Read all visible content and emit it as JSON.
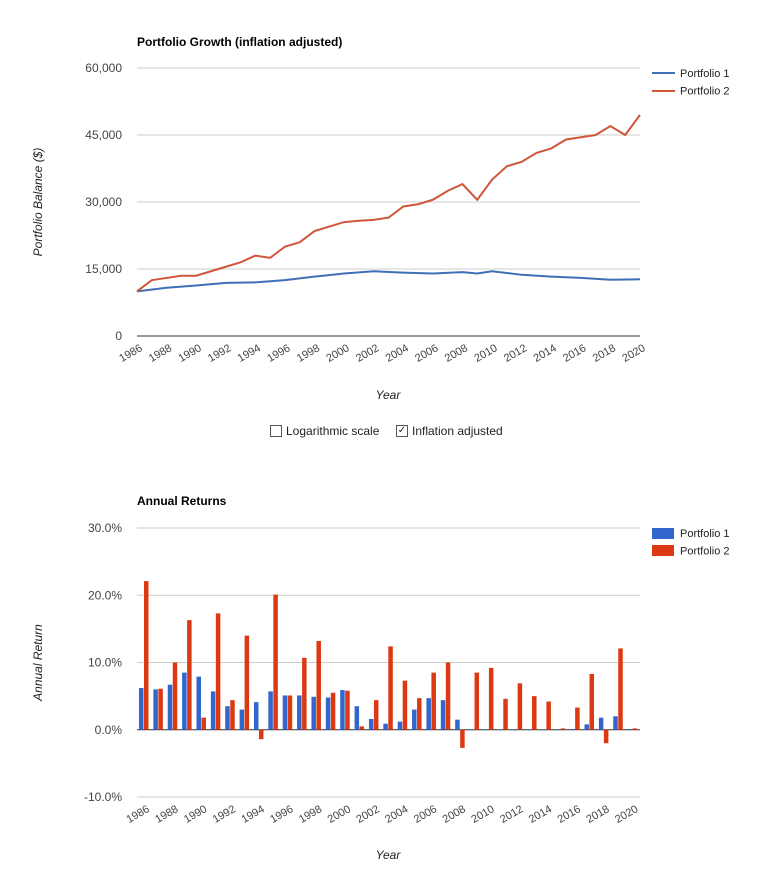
{
  "chart_data": [
    {
      "type": "line",
      "title": "Portfolio Growth (inflation adjusted)",
      "xlabel": "Year",
      "ylabel": "Portfolio Balance ($)",
      "ylim": [
        0,
        60000
      ],
      "yticks": [
        "0",
        "15,000",
        "30,000",
        "45,000",
        "60,000"
      ],
      "ytick_values": [
        0,
        15000,
        30000,
        45000,
        60000
      ],
      "xlim": [
        1986,
        2020
      ],
      "xticks": [
        1986,
        1988,
        1990,
        1992,
        1994,
        1996,
        1998,
        2000,
        2002,
        2004,
        2006,
        2008,
        2010,
        2012,
        2014,
        2016,
        2018,
        2020
      ],
      "grid": true,
      "legend": "right",
      "series": [
        {
          "name": "Portfolio 1",
          "color": "#3f6fb5",
          "x": [
            1986,
            1988,
            1990,
            1992,
            1994,
            1996,
            1998,
            2000,
            2002,
            2004,
            2006,
            2008,
            2009,
            2010,
            2012,
            2014,
            2016,
            2018,
            2020
          ],
          "values": [
            10000,
            10800,
            11300,
            11900,
            12000,
            12500,
            13300,
            14000,
            14500,
            14200,
            14000,
            14300,
            14000,
            14500,
            13700,
            13300,
            13000,
            12600,
            12700
          ]
        },
        {
          "name": "Portfolio 2",
          "color": "#d0563b",
          "x": [
            1986,
            1987,
            1988,
            1989,
            1990,
            1991,
            1992,
            1993,
            1994,
            1995,
            1996,
            1997,
            1998,
            1999,
            2000,
            2001,
            2002,
            2003,
            2004,
            2005,
            2006,
            2007,
            2008,
            2009,
            2010,
            2011,
            2012,
            2013,
            2014,
            2015,
            2016,
            2017,
            2018,
            2019,
            2020
          ],
          "values": [
            10000,
            12500,
            13000,
            13500,
            13500,
            14500,
            15500,
            16500,
            18000,
            17500,
            20000,
            21000,
            23500,
            24500,
            25500,
            25800,
            26000,
            26500,
            29000,
            29500,
            30500,
            32500,
            34000,
            30500,
            35000,
            38000,
            39000,
            41000,
            42000,
            44000,
            44500,
            45000,
            47000,
            45000,
            49500
          ]
        }
      ]
    },
    {
      "type": "bar",
      "title": "Annual Returns",
      "xlabel": "Year",
      "ylabel": "Annual Return",
      "ylim": [
        -10,
        30
      ],
      "yticks": [
        "-10.0%",
        "0.0%",
        "10.0%",
        "20.0%",
        "30.0%"
      ],
      "ytick_values": [
        -10,
        0,
        10,
        20,
        30
      ],
      "categories": [
        1986,
        1987,
        1988,
        1989,
        1990,
        1991,
        1992,
        1993,
        1994,
        1995,
        1996,
        1997,
        1998,
        1999,
        2000,
        2001,
        2002,
        2003,
        2004,
        2005,
        2006,
        2007,
        2008,
        2009,
        2010,
        2011,
        2012,
        2013,
        2014,
        2015,
        2016,
        2017,
        2018,
        2019,
        2020
      ],
      "xticks": [
        1986,
        1988,
        1990,
        1992,
        1994,
        1996,
        1998,
        2000,
        2002,
        2004,
        2006,
        2008,
        2010,
        2012,
        2014,
        2016,
        2018,
        2020
      ],
      "grid": true,
      "legend": "right",
      "series": [
        {
          "name": "Portfolio 1",
          "color": "#3366cc",
          "values": [
            6.2,
            6.0,
            6.7,
            8.5,
            7.9,
            5.7,
            3.5,
            3.0,
            4.1,
            5.7,
            5.1,
            5.1,
            4.9,
            4.8,
            5.9,
            3.5,
            1.6,
            0.9,
            1.2,
            3.0,
            4.7,
            4.4,
            1.5,
            0,
            0,
            0,
            0,
            0,
            0,
            0,
            0.1,
            0.8,
            1.8,
            2.0,
            0.1
          ]
        },
        {
          "name": "Portfolio 2",
          "color": "#dc3912",
          "values": [
            22.1,
            6.1,
            10.0,
            16.3,
            1.8,
            17.3,
            4.4,
            14.0,
            -1.4,
            20.1,
            5.1,
            10.7,
            13.2,
            5.5,
            5.8,
            0.5,
            4.4,
            12.4,
            7.3,
            4.7,
            8.5,
            10.0,
            -2.7,
            8.5,
            9.2,
            4.6,
            6.9,
            5.0,
            4.2,
            0.2,
            3.3,
            8.3,
            -2.0,
            12.1,
            0.2
          ]
        }
      ]
    }
  ],
  "controls": {
    "log_label": "Logarithmic scale",
    "log_checked": false,
    "infl_label": "Inflation adjusted",
    "infl_checked": true
  }
}
